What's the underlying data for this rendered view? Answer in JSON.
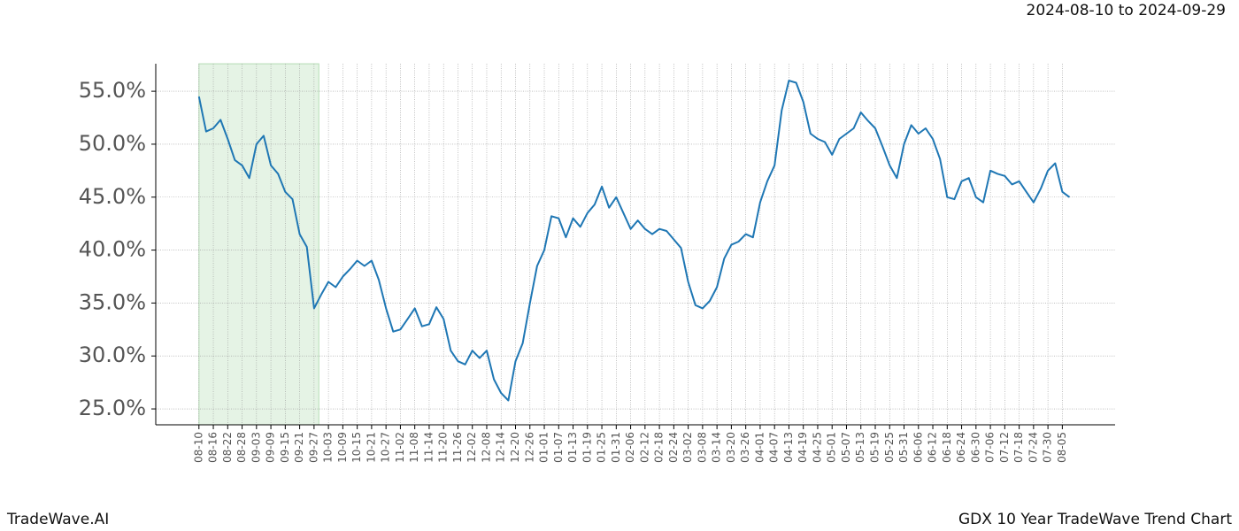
{
  "chart_data": {
    "type": "line",
    "title": "GDX 10 Year TradeWave Trend Chart",
    "subtitle": "2024-08-10 to 2024-09-29",
    "brand": "TradeWave.AI",
    "color": "#1f77b4",
    "highlight_color": "#2ca02c",
    "highlight": [
      0,
      50
    ],
    "grid": true,
    "xlim": [
      -18,
      382
    ],
    "ylim": [
      23.5,
      57.6
    ],
    "yticks": [
      {
        "value": 25,
        "label": "25.0%"
      },
      {
        "value": 30,
        "label": "30.0%"
      },
      {
        "value": 35,
        "label": "35.0%"
      },
      {
        "value": 40,
        "label": "40.0%"
      },
      {
        "value": 45,
        "label": "45.0%"
      },
      {
        "value": 50,
        "label": "50.0%"
      },
      {
        "value": 55,
        "label": "55.0%"
      }
    ],
    "xticks": [
      {
        "value": 0,
        "label": "08-10"
      },
      {
        "value": 6,
        "label": "08-16"
      },
      {
        "value": 12,
        "label": "08-22"
      },
      {
        "value": 18,
        "label": "08-28"
      },
      {
        "value": 24,
        "label": "09-03"
      },
      {
        "value": 30,
        "label": "09-09"
      },
      {
        "value": 36,
        "label": "09-15"
      },
      {
        "value": 42,
        "label": "09-21"
      },
      {
        "value": 48,
        "label": "09-27"
      },
      {
        "value": 54,
        "label": "10-03"
      },
      {
        "value": 60,
        "label": "10-09"
      },
      {
        "value": 66,
        "label": "10-15"
      },
      {
        "value": 72,
        "label": "10-21"
      },
      {
        "value": 78,
        "label": "10-27"
      },
      {
        "value": 84,
        "label": "11-02"
      },
      {
        "value": 90,
        "label": "11-08"
      },
      {
        "value": 96,
        "label": "11-14"
      },
      {
        "value": 102,
        "label": "11-20"
      },
      {
        "value": 108,
        "label": "11-26"
      },
      {
        "value": 114,
        "label": "12-02"
      },
      {
        "value": 120,
        "label": "12-08"
      },
      {
        "value": 126,
        "label": "12-14"
      },
      {
        "value": 132,
        "label": "12-20"
      },
      {
        "value": 138,
        "label": "12-26"
      },
      {
        "value": 144,
        "label": "01-01"
      },
      {
        "value": 150,
        "label": "01-07"
      },
      {
        "value": 156,
        "label": "01-13"
      },
      {
        "value": 162,
        "label": "01-19"
      },
      {
        "value": 168,
        "label": "01-25"
      },
      {
        "value": 174,
        "label": "01-31"
      },
      {
        "value": 180,
        "label": "02-06"
      },
      {
        "value": 186,
        "label": "02-12"
      },
      {
        "value": 192,
        "label": "02-18"
      },
      {
        "value": 198,
        "label": "02-24"
      },
      {
        "value": 204,
        "label": "03-02"
      },
      {
        "value": 210,
        "label": "03-08"
      },
      {
        "value": 216,
        "label": "03-14"
      },
      {
        "value": 222,
        "label": "03-20"
      },
      {
        "value": 228,
        "label": "03-26"
      },
      {
        "value": 234,
        "label": "04-01"
      },
      {
        "value": 240,
        "label": "04-07"
      },
      {
        "value": 246,
        "label": "04-13"
      },
      {
        "value": 252,
        "label": "04-19"
      },
      {
        "value": 258,
        "label": "04-25"
      },
      {
        "value": 264,
        "label": "05-01"
      },
      {
        "value": 270,
        "label": "05-07"
      },
      {
        "value": 276,
        "label": "05-13"
      },
      {
        "value": 282,
        "label": "05-19"
      },
      {
        "value": 288,
        "label": "05-25"
      },
      {
        "value": 294,
        "label": "05-31"
      },
      {
        "value": 300,
        "label": "06-06"
      },
      {
        "value": 306,
        "label": "06-12"
      },
      {
        "value": 312,
        "label": "06-18"
      },
      {
        "value": 318,
        "label": "06-24"
      },
      {
        "value": 324,
        "label": "06-30"
      },
      {
        "value": 330,
        "label": "07-06"
      },
      {
        "value": 336,
        "label": "07-12"
      },
      {
        "value": 342,
        "label": "07-18"
      },
      {
        "value": 348,
        "label": "07-24"
      },
      {
        "value": 354,
        "label": "07-30"
      },
      {
        "value": 360,
        "label": "08-05"
      }
    ],
    "x": [
      0,
      3,
      6,
      9,
      12,
      15,
      18,
      21,
      24,
      27,
      30,
      33,
      36,
      39,
      42,
      45,
      48,
      51,
      54,
      57,
      60,
      63,
      66,
      69,
      72,
      75,
      78,
      81,
      84,
      87,
      90,
      93,
      96,
      99,
      102,
      105,
      108,
      111,
      114,
      117,
      120,
      123,
      126,
      129,
      132,
      135,
      138,
      141,
      144,
      147,
      150,
      153,
      156,
      159,
      162,
      165,
      168,
      171,
      174,
      177,
      180,
      183,
      186,
      189,
      192,
      195,
      198,
      201,
      204,
      207,
      210,
      213,
      216,
      219,
      222,
      225,
      228,
      231,
      234,
      237,
      240,
      243,
      246,
      249,
      252,
      255,
      258,
      261,
      264,
      267,
      270,
      273,
      276,
      279,
      282,
      285,
      288,
      291,
      294,
      297,
      300,
      303,
      306,
      309,
      312,
      315,
      318,
      321,
      324,
      327,
      330,
      333,
      336,
      339,
      342,
      345,
      348,
      351,
      354,
      357,
      360,
      363
    ],
    "values": [
      54.5,
      51.2,
      51.5,
      52.3,
      50.5,
      48.5,
      48,
      46.8,
      50,
      50.8,
      48,
      47.2,
      45.5,
      44.8,
      41.5,
      40.3,
      34.5,
      35.8,
      37,
      36.5,
      37.5,
      38.2,
      39,
      38.5,
      39,
      37.2,
      34.5,
      32.3,
      32.5,
      33.5,
      34.5,
      32.8,
      33,
      34.6,
      33.5,
      30.5,
      29.5,
      29.2,
      30.5,
      29.8,
      30.5,
      27.8,
      26.5,
      25.8,
      29.5,
      31.2,
      35,
      38.5,
      40,
      43.2,
      43,
      41.2,
      43,
      42.2,
      43.5,
      44.3,
      46,
      44,
      45,
      43.5,
      42,
      42.8,
      42,
      41.5,
      42,
      41.8,
      41,
      40.2,
      37,
      34.8,
      34.5,
      35.2,
      36.5,
      39.2,
      40.5,
      40.8,
      41.5,
      41.2,
      44.5,
      46.5,
      48,
      53.2,
      56,
      55.8,
      54,
      51,
      50.5,
      50.2,
      49,
      50.5,
      51,
      51.5,
      53,
      52.2,
      51.5,
      49.8,
      48,
      46.8,
      50,
      51.8,
      51,
      51.5,
      50.5,
      48.6,
      45,
      44.8,
      46.5,
      46.8,
      45,
      44.5,
      47.5,
      47.2,
      47,
      46.2,
      46.5,
      45.5,
      44.5,
      45.8,
      47.5,
      48.2,
      45.5,
      45
    ]
  }
}
